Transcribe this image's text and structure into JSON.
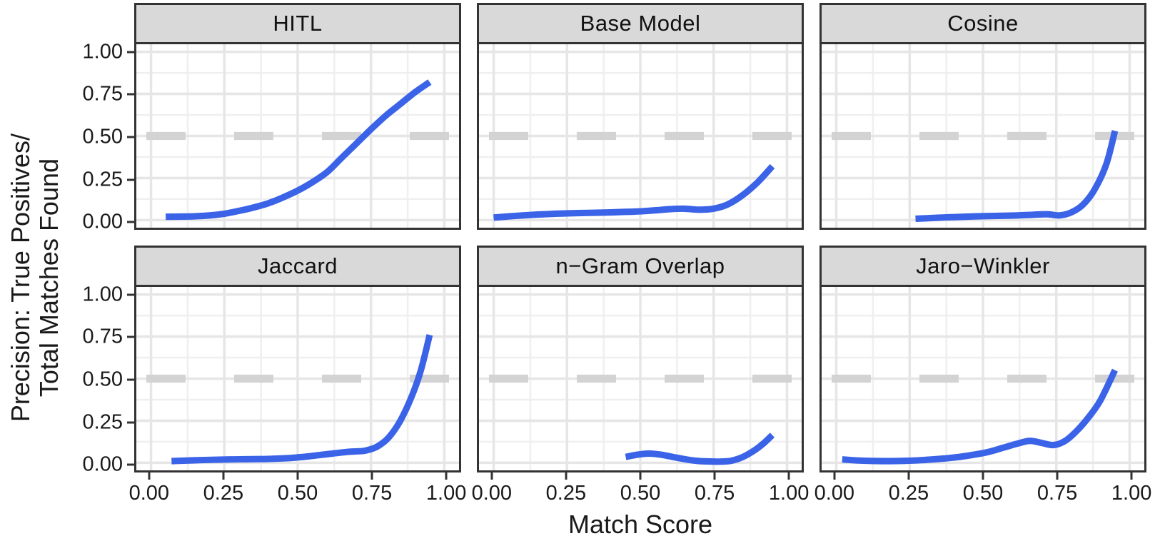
{
  "figure": {
    "x_axis_title": "Match Score",
    "y_axis_title_line1": "Precision: True Positives/",
    "y_axis_title_line2": "Total Matches Found"
  },
  "axes": {
    "x_ticks": [
      {
        "label": "0.00",
        "value": 0.0
      },
      {
        "label": "0.25",
        "value": 0.25
      },
      {
        "label": "0.50",
        "value": 0.5
      },
      {
        "label": "0.75",
        "value": 0.75
      },
      {
        "label": "1.00",
        "value": 1.0
      }
    ],
    "y_ticks": [
      {
        "label": "1.00",
        "value": 1.0
      },
      {
        "label": "0.75",
        "value": 0.75
      },
      {
        "label": "0.50",
        "value": 0.5
      },
      {
        "label": "0.25",
        "value": 0.25
      },
      {
        "label": "0.00",
        "value": 0.0
      }
    ],
    "major_gridlines": [
      0.0,
      0.25,
      0.5,
      0.75,
      1.0
    ],
    "minor_gridlines": [
      0.125,
      0.375,
      0.625,
      0.875
    ]
  },
  "style": {
    "line_color": "#3B63E7",
    "ref_line_color": "#D3D3D3",
    "grid_major_color": "#E6E6E6",
    "grid_minor_color": "#EFEFEF",
    "strip_bg": "#D9D9D9",
    "border_color": "#333333"
  },
  "chart_data": {
    "type": "line",
    "title": "",
    "xlabel": "Match Score",
    "ylabel": "Precision: True Positives/ Total Matches Found",
    "x_range": [
      0,
      1
    ],
    "y_range": [
      0,
      1
    ],
    "x_expanded": [
      -0.05,
      1.05
    ],
    "y_expanded": [
      -0.045,
      1.045
    ],
    "grid": "on",
    "legend": "none",
    "reference_line": {
      "y": 0.5,
      "linetype": "dashed",
      "color": "#D3D3D3"
    },
    "facets": [
      {
        "title": "HITL",
        "points": [
          [
            0.05,
            0.02
          ],
          [
            0.1,
            0.021
          ],
          [
            0.15,
            0.023
          ],
          [
            0.2,
            0.028
          ],
          [
            0.25,
            0.038
          ],
          [
            0.3,
            0.055
          ],
          [
            0.35,
            0.075
          ],
          [
            0.4,
            0.1
          ],
          [
            0.45,
            0.135
          ],
          [
            0.5,
            0.175
          ],
          [
            0.55,
            0.225
          ],
          [
            0.6,
            0.285
          ],
          [
            0.65,
            0.37
          ],
          [
            0.7,
            0.455
          ],
          [
            0.75,
            0.54
          ],
          [
            0.8,
            0.62
          ],
          [
            0.85,
            0.69
          ],
          [
            0.9,
            0.76
          ],
          [
            0.95,
            0.82
          ]
        ]
      },
      {
        "title": "Base Model",
        "points": [
          [
            0.0,
            0.015
          ],
          [
            0.05,
            0.022
          ],
          [
            0.1,
            0.028
          ],
          [
            0.15,
            0.033
          ],
          [
            0.2,
            0.037
          ],
          [
            0.25,
            0.04
          ],
          [
            0.3,
            0.042
          ],
          [
            0.35,
            0.044
          ],
          [
            0.4,
            0.046
          ],
          [
            0.45,
            0.049
          ],
          [
            0.5,
            0.052
          ],
          [
            0.55,
            0.058
          ],
          [
            0.6,
            0.065
          ],
          [
            0.65,
            0.068
          ],
          [
            0.7,
            0.062
          ],
          [
            0.75,
            0.068
          ],
          [
            0.8,
            0.095
          ],
          [
            0.85,
            0.15
          ],
          [
            0.9,
            0.225
          ],
          [
            0.95,
            0.32
          ]
        ]
      },
      {
        "title": "Cosine",
        "points": [
          [
            0.27,
            0.008
          ],
          [
            0.32,
            0.012
          ],
          [
            0.37,
            0.016
          ],
          [
            0.42,
            0.019
          ],
          [
            0.47,
            0.022
          ],
          [
            0.52,
            0.024
          ],
          [
            0.57,
            0.026
          ],
          [
            0.62,
            0.028
          ],
          [
            0.67,
            0.032
          ],
          [
            0.72,
            0.035
          ],
          [
            0.76,
            0.028
          ],
          [
            0.8,
            0.045
          ],
          [
            0.84,
            0.09
          ],
          [
            0.88,
            0.18
          ],
          [
            0.92,
            0.33
          ],
          [
            0.95,
            0.53
          ]
        ]
      },
      {
        "title": "Jaccard",
        "points": [
          [
            0.07,
            0.01
          ],
          [
            0.12,
            0.013
          ],
          [
            0.17,
            0.016
          ],
          [
            0.22,
            0.018
          ],
          [
            0.27,
            0.02
          ],
          [
            0.32,
            0.021
          ],
          [
            0.37,
            0.022
          ],
          [
            0.42,
            0.024
          ],
          [
            0.47,
            0.028
          ],
          [
            0.52,
            0.035
          ],
          [
            0.57,
            0.045
          ],
          [
            0.62,
            0.055
          ],
          [
            0.67,
            0.065
          ],
          [
            0.7,
            0.068
          ],
          [
            0.73,
            0.072
          ],
          [
            0.77,
            0.095
          ],
          [
            0.81,
            0.15
          ],
          [
            0.85,
            0.25
          ],
          [
            0.89,
            0.4
          ],
          [
            0.92,
            0.55
          ],
          [
            0.95,
            0.76
          ]
        ]
      },
      {
        "title": "n−Gram Overlap",
        "points": [
          [
            0.45,
            0.035
          ],
          [
            0.49,
            0.048
          ],
          [
            0.53,
            0.055
          ],
          [
            0.57,
            0.048
          ],
          [
            0.61,
            0.035
          ],
          [
            0.65,
            0.022
          ],
          [
            0.69,
            0.012
          ],
          [
            0.73,
            0.008
          ],
          [
            0.77,
            0.007
          ],
          [
            0.81,
            0.012
          ],
          [
            0.85,
            0.035
          ],
          [
            0.89,
            0.075
          ],
          [
            0.92,
            0.115
          ],
          [
            0.95,
            0.165
          ]
        ]
      },
      {
        "title": "Jaro−Winkler",
        "points": [
          [
            0.02,
            0.02
          ],
          [
            0.07,
            0.014
          ],
          [
            0.12,
            0.011
          ],
          [
            0.17,
            0.01
          ],
          [
            0.22,
            0.011
          ],
          [
            0.27,
            0.014
          ],
          [
            0.32,
            0.019
          ],
          [
            0.37,
            0.026
          ],
          [
            0.42,
            0.035
          ],
          [
            0.47,
            0.048
          ],
          [
            0.52,
            0.065
          ],
          [
            0.57,
            0.09
          ],
          [
            0.62,
            0.115
          ],
          [
            0.66,
            0.13
          ],
          [
            0.7,
            0.118
          ],
          [
            0.74,
            0.105
          ],
          [
            0.78,
            0.13
          ],
          [
            0.82,
            0.19
          ],
          [
            0.86,
            0.27
          ],
          [
            0.9,
            0.37
          ],
          [
            0.95,
            0.55
          ]
        ]
      }
    ]
  }
}
